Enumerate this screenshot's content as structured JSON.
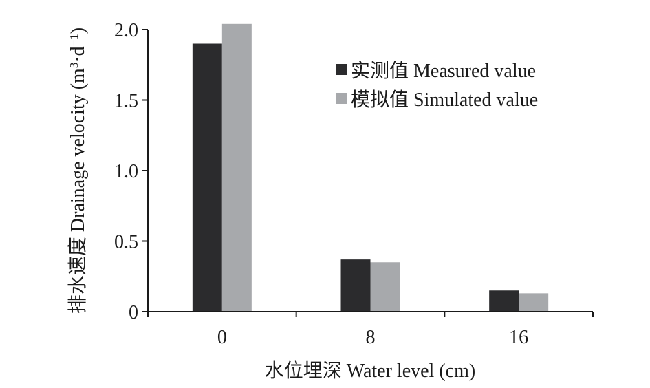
{
  "chart_data": {
    "type": "bar",
    "categories": [
      "0",
      "8",
      "16"
    ],
    "series": [
      {
        "name": "实测值 Measured value",
        "values": [
          1.9,
          0.37,
          0.15
        ],
        "color": "#2b2b2d"
      },
      {
        "name": "模拟值 Simulated value",
        "values": [
          2.04,
          0.35,
          0.13
        ],
        "color": "#a7a9ac"
      }
    ],
    "xlabel": "水位埋深 Water level (cm)",
    "ylabel_main": "排水速度 Drainage velocity (m",
    "ylabel_sup1": "3",
    "ylabel_mid": "·d",
    "ylabel_sup2": "−1",
    "ylabel_end": ")",
    "yticks": [
      {
        "value": 0,
        "label": "0"
      },
      {
        "value": 0.5,
        "label": "0.5"
      },
      {
        "value": 1.0,
        "label": "1.0"
      },
      {
        "value": 1.5,
        "label": "1.5"
      },
      {
        "value": 2.0,
        "label": "2.0"
      }
    ],
    "ylim": [
      0,
      2.0
    ],
    "grid": false,
    "legend_position": "top-right"
  }
}
